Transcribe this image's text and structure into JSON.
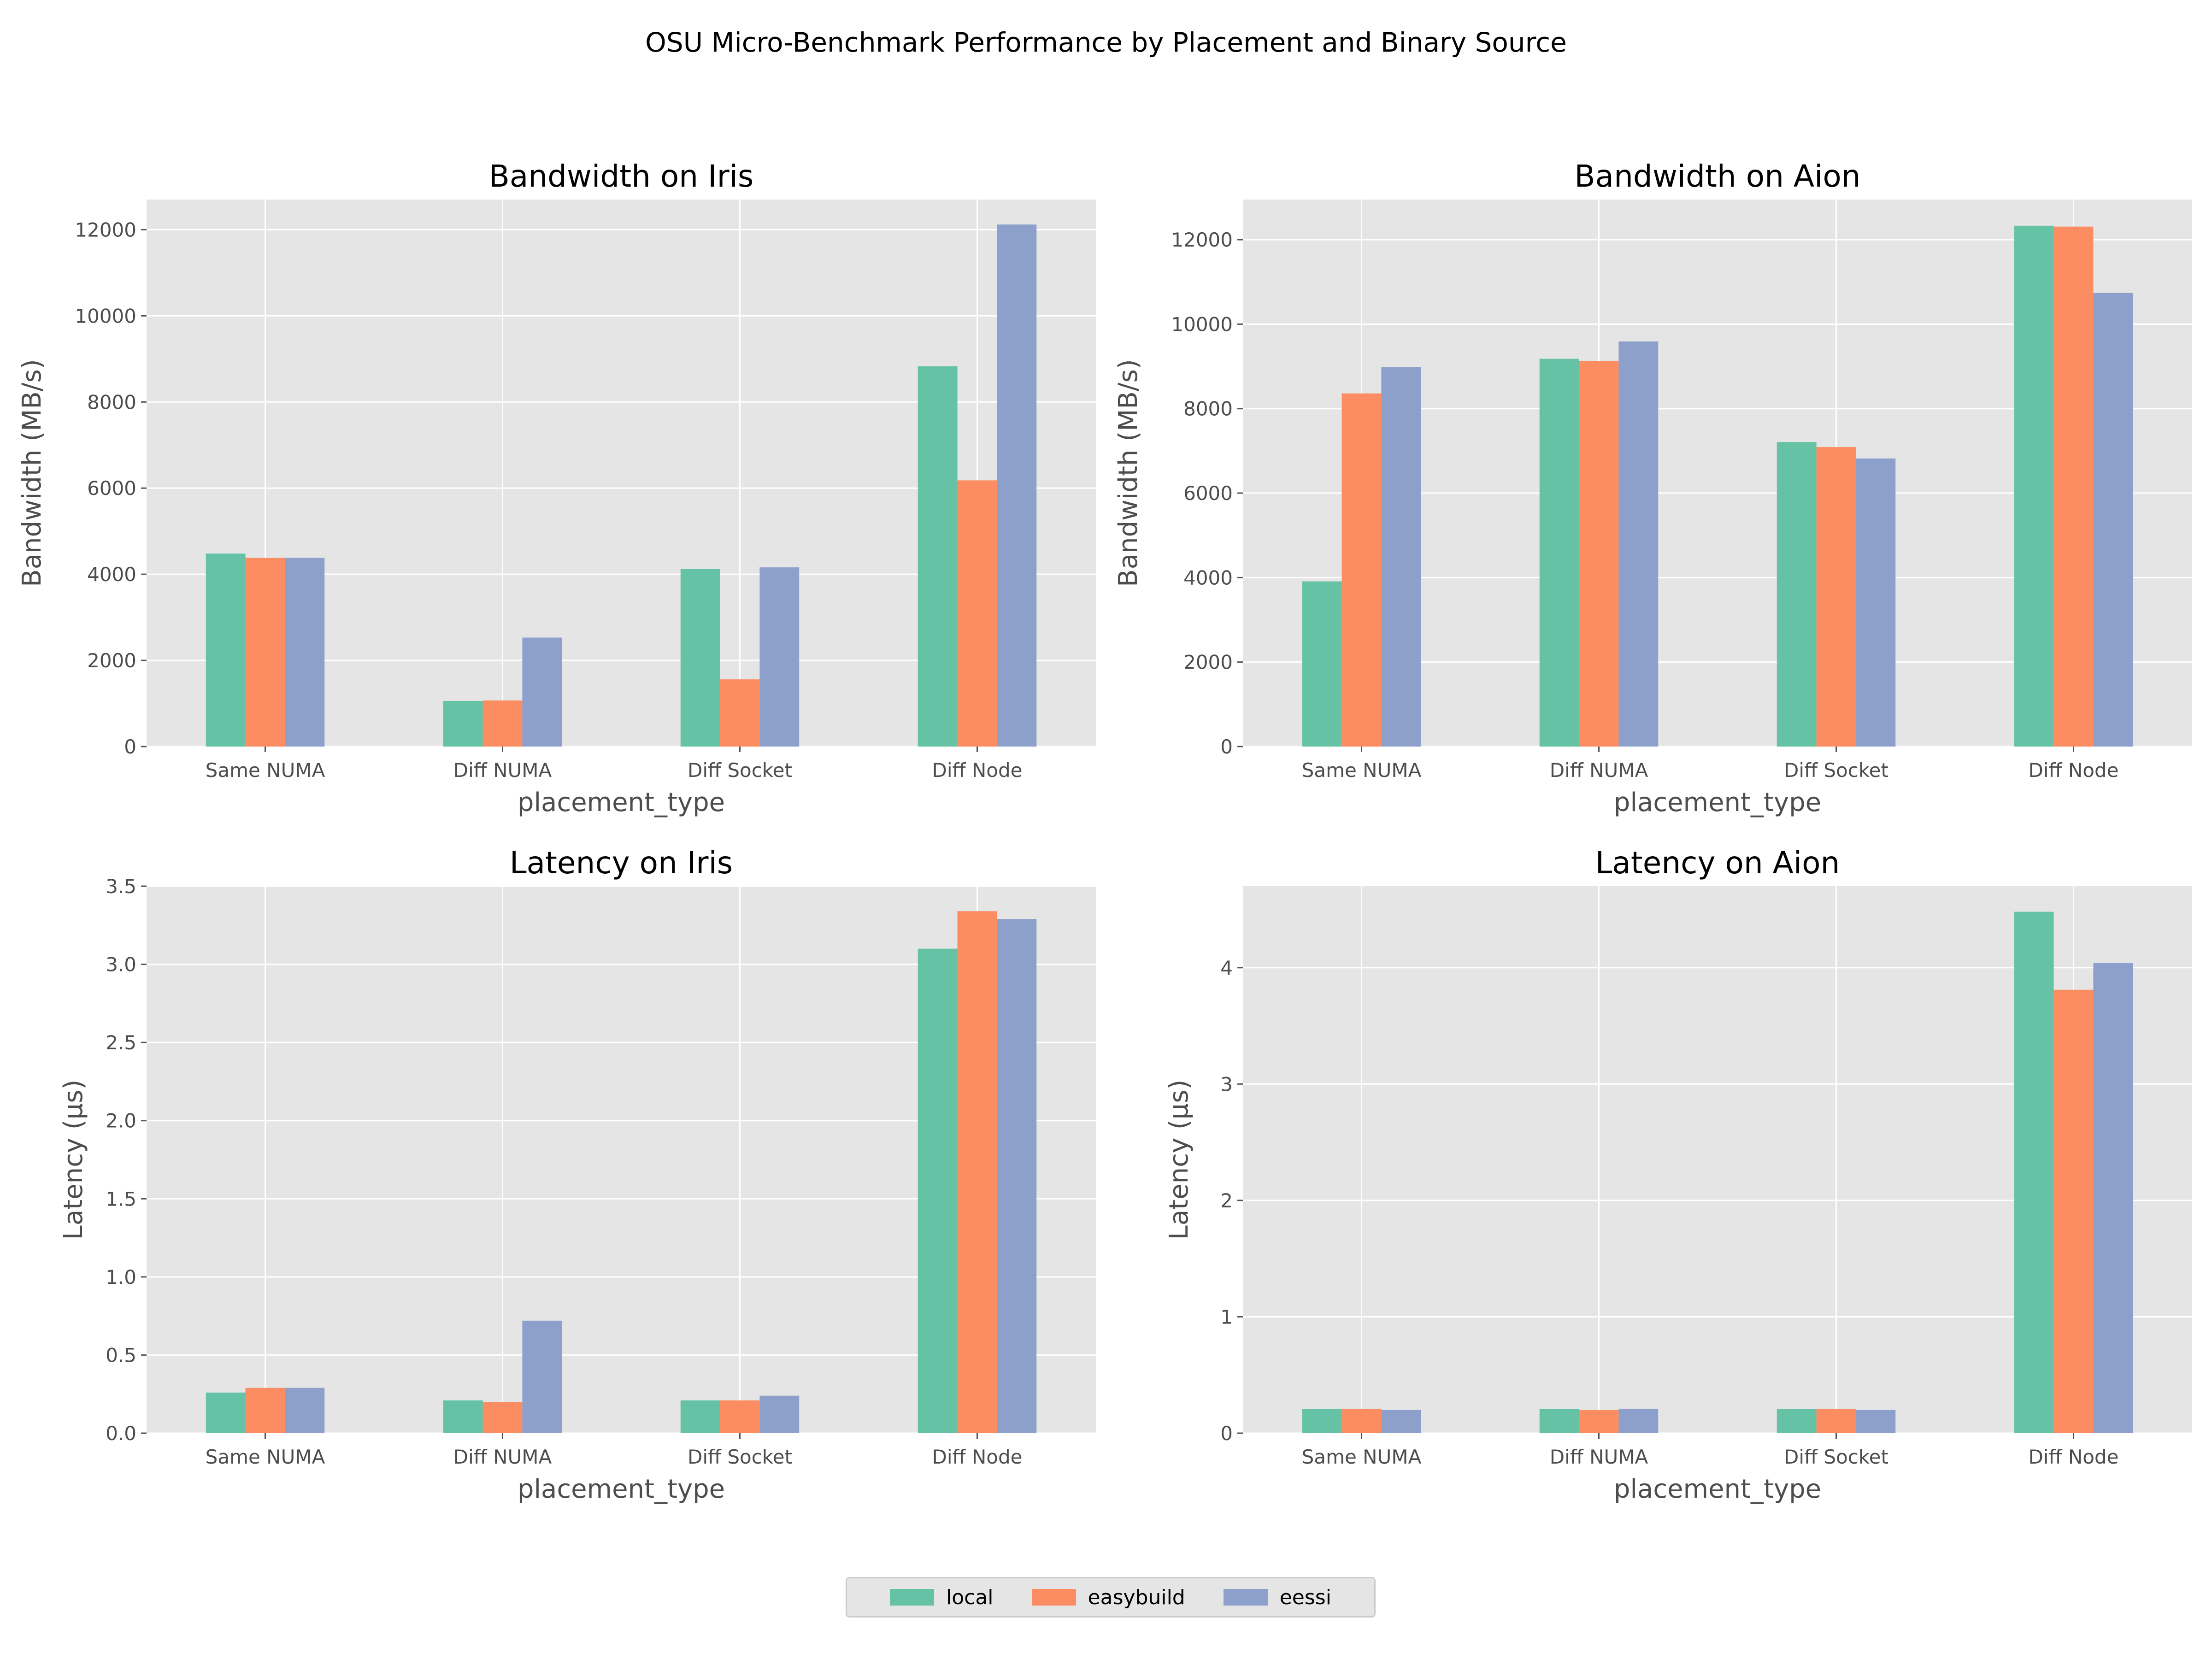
{
  "suptitle": "OSU Micro-Benchmark Performance by Placement and Binary Source",
  "legend": {
    "entries": [
      {
        "label": "local",
        "color": "#66c2a5"
      },
      {
        "label": "easybuild",
        "color": "#fc8d62"
      },
      {
        "label": "eessi",
        "color": "#8da0cb"
      }
    ]
  },
  "chart_data": [
    {
      "type": "bar",
      "title": "Bandwidth on Iris",
      "xlabel": "placement_type",
      "ylabel": "Bandwidth (MB/s)",
      "categories": [
        "Same NUMA",
        "Diff NUMA",
        "Diff Socket",
        "Diff Node"
      ],
      "ylim": [
        0,
        12700
      ],
      "yticks": [
        0,
        2000,
        4000,
        6000,
        8000,
        10000,
        12000
      ],
      "grid": true,
      "series": [
        {
          "name": "local",
          "color": "#66c2a5",
          "values": [
            4480,
            1060,
            4120,
            8830
          ]
        },
        {
          "name": "easybuild",
          "color": "#fc8d62",
          "values": [
            4380,
            1070,
            1560,
            6180
          ]
        },
        {
          "name": "eessi",
          "color": "#8da0cb",
          "values": [
            4380,
            2530,
            4160,
            12120
          ]
        }
      ]
    },
    {
      "type": "bar",
      "title": "Bandwidth on Aion",
      "xlabel": "placement_type",
      "ylabel": "Bandwidth (MB/s)",
      "categories": [
        "Same NUMA",
        "Diff NUMA",
        "Diff Socket",
        "Diff Node"
      ],
      "ylim": [
        0,
        12950
      ],
      "yticks": [
        0,
        2000,
        4000,
        6000,
        8000,
        10000,
        12000
      ],
      "grid": true,
      "series": [
        {
          "name": "local",
          "color": "#66c2a5",
          "values": [
            3910,
            9180,
            7210,
            12330
          ]
        },
        {
          "name": "easybuild",
          "color": "#fc8d62",
          "values": [
            8360,
            9130,
            7090,
            12310
          ]
        },
        {
          "name": "eessi",
          "color": "#8da0cb",
          "values": [
            8980,
            9590,
            6820,
            10740
          ]
        }
      ]
    },
    {
      "type": "bar",
      "title": "Latency on Iris",
      "xlabel": "placement_type",
      "ylabel": "Latency (μs)",
      "categories": [
        "Same NUMA",
        "Diff NUMA",
        "Diff Socket",
        "Diff Node"
      ],
      "ylim": [
        0,
        3.5
      ],
      "yticks": [
        0.0,
        0.5,
        1.0,
        1.5,
        2.0,
        2.5,
        3.0,
        3.5
      ],
      "ytick_labels": [
        "0.0",
        "0.5",
        "1.0",
        "1.5",
        "2.0",
        "2.5",
        "3.0",
        "3.5"
      ],
      "grid": true,
      "series": [
        {
          "name": "local",
          "color": "#66c2a5",
          "values": [
            0.26,
            0.21,
            0.21,
            3.1
          ]
        },
        {
          "name": "easybuild",
          "color": "#fc8d62",
          "values": [
            0.29,
            0.2,
            0.21,
            3.34
          ]
        },
        {
          "name": "eessi",
          "color": "#8da0cb",
          "values": [
            0.29,
            0.72,
            0.24,
            3.29
          ]
        }
      ]
    },
    {
      "type": "bar",
      "title": "Latency on Aion",
      "xlabel": "placement_type",
      "ylabel": "Latency (μs)",
      "categories": [
        "Same NUMA",
        "Diff NUMA",
        "Diff Socket",
        "Diff Node"
      ],
      "ylim": [
        0,
        4.7
      ],
      "yticks": [
        0,
        1,
        2,
        3,
        4
      ],
      "grid": true,
      "series": [
        {
          "name": "local",
          "color": "#66c2a5",
          "values": [
            0.21,
            0.21,
            0.21,
            4.48
          ]
        },
        {
          "name": "easybuild",
          "color": "#fc8d62",
          "values": [
            0.21,
            0.2,
            0.21,
            3.81
          ]
        },
        {
          "name": "eessi",
          "color": "#8da0cb",
          "values": [
            0.2,
            0.21,
            0.2,
            4.04
          ]
        }
      ]
    }
  ]
}
